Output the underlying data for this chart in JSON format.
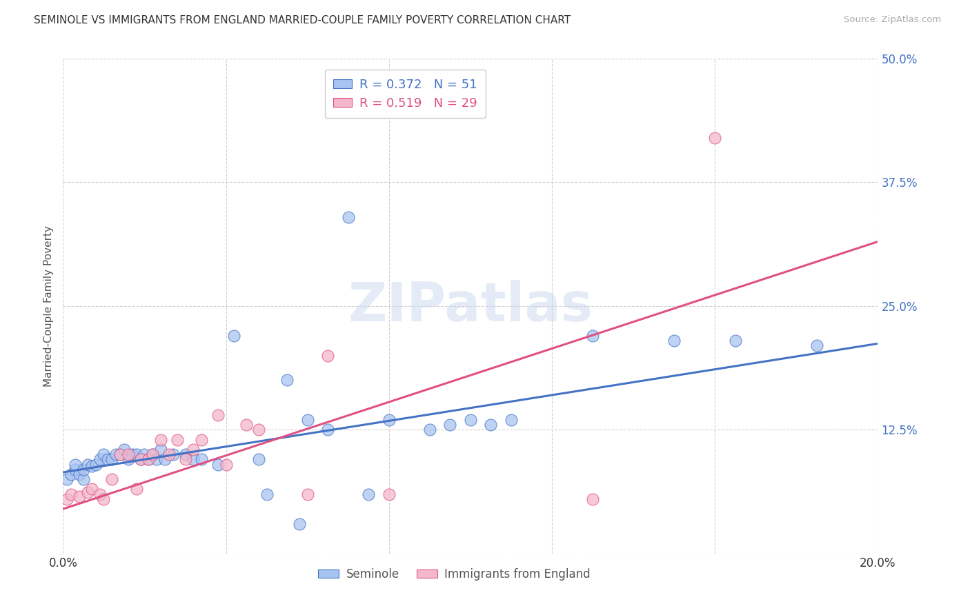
{
  "title": "SEMINOLE VS IMMIGRANTS FROM ENGLAND MARRIED-COUPLE FAMILY POVERTY CORRELATION CHART",
  "source": "Source: ZipAtlas.com",
  "ylabel": "Married-Couple Family Poverty",
  "xlim": [
    0.0,
    0.2
  ],
  "ylim": [
    0.0,
    0.5
  ],
  "xticks": [
    0.0,
    0.04,
    0.08,
    0.12,
    0.16,
    0.2
  ],
  "yticks": [
    0.0,
    0.125,
    0.25,
    0.375,
    0.5
  ],
  "legend_labels": [
    "Seminole",
    "Immigrants from England"
  ],
  "r_seminole": 0.372,
  "n_seminole": 51,
  "r_england": 0.519,
  "n_england": 29,
  "seminole_color": "#a8c4f0",
  "england_color": "#f4b8ca",
  "seminole_line_color": "#4472c4",
  "england_line_color": "#e05080",
  "background_color": "#ffffff",
  "seminole_x": [
    0.001,
    0.002,
    0.003,
    0.003,
    0.004,
    0.005,
    0.005,
    0.006,
    0.007,
    0.008,
    0.009,
    0.01,
    0.011,
    0.012,
    0.013,
    0.014,
    0.015,
    0.016,
    0.017,
    0.018,
    0.019,
    0.02,
    0.021,
    0.022,
    0.023,
    0.024,
    0.025,
    0.027,
    0.03,
    0.032,
    0.034,
    0.038,
    0.042,
    0.048,
    0.05,
    0.055,
    0.058,
    0.06,
    0.065,
    0.07,
    0.075,
    0.08,
    0.09,
    0.095,
    0.1,
    0.105,
    0.11,
    0.13,
    0.15,
    0.165,
    0.185
  ],
  "seminole_y": [
    0.075,
    0.08,
    0.085,
    0.09,
    0.08,
    0.075,
    0.085,
    0.09,
    0.088,
    0.09,
    0.095,
    0.1,
    0.095,
    0.095,
    0.1,
    0.1,
    0.105,
    0.095,
    0.1,
    0.1,
    0.095,
    0.1,
    0.095,
    0.1,
    0.095,
    0.105,
    0.095,
    0.1,
    0.1,
    0.095,
    0.095,
    0.09,
    0.22,
    0.095,
    0.06,
    0.175,
    0.03,
    0.135,
    0.125,
    0.34,
    0.06,
    0.135,
    0.125,
    0.13,
    0.135,
    0.13,
    0.135,
    0.22,
    0.215,
    0.215,
    0.21
  ],
  "england_x": [
    0.001,
    0.002,
    0.004,
    0.006,
    0.007,
    0.009,
    0.01,
    0.012,
    0.014,
    0.016,
    0.018,
    0.019,
    0.021,
    0.022,
    0.024,
    0.026,
    0.028,
    0.03,
    0.032,
    0.034,
    0.038,
    0.04,
    0.045,
    0.048,
    0.06,
    0.065,
    0.08,
    0.13,
    0.16
  ],
  "england_y": [
    0.055,
    0.06,
    0.058,
    0.062,
    0.065,
    0.06,
    0.055,
    0.075,
    0.1,
    0.1,
    0.065,
    0.095,
    0.095,
    0.1,
    0.115,
    0.1,
    0.115,
    0.095,
    0.105,
    0.115,
    0.14,
    0.09,
    0.13,
    0.125,
    0.06,
    0.2,
    0.06,
    0.055,
    0.42
  ],
  "seminole_intercept": 0.082,
  "seminole_slope": 0.65,
  "england_intercept": 0.045,
  "england_slope": 1.35
}
